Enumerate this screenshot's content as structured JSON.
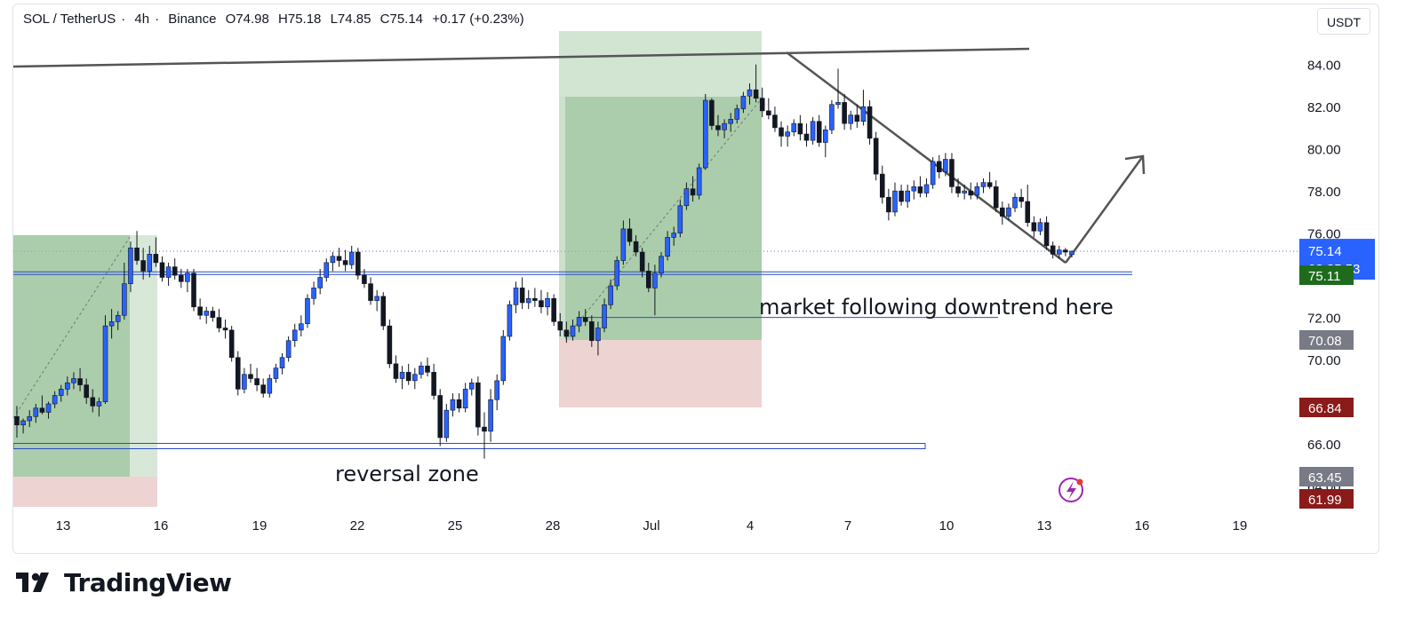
{
  "header": {
    "symbol": "SOL / TetherUS",
    "timeframe": "4h",
    "exchange": "Binance",
    "separator": "·",
    "open": "O74.98",
    "high": "H75.18",
    "low": "L74.85",
    "close": "C75.14",
    "change": "+0.17 (+0.23%)"
  },
  "currency_button": "USDT",
  "brand": {
    "name": "TradingView"
  },
  "colors": {
    "up": "#2962ff",
    "down": "#131722",
    "zone_green": "#8fbc8f",
    "zone_red": "#e8c4c4",
    "line": "#555555",
    "level_blue": "#2a4cc7"
  },
  "chart_data": {
    "type": "candlestick",
    "ylim": [
      63.1,
      85.5
    ],
    "yticks": [
      "84.00",
      "82.00",
      "80.00",
      "78.00",
      "76.00",
      "74.00",
      "72.00",
      "70.00",
      "68.00",
      "66.00",
      "64.00"
    ],
    "x_axis_ticks": [
      "13",
      "16",
      "19",
      "22",
      "25",
      "28",
      "Jul",
      "4",
      "7",
      "10",
      "13",
      "16",
      "19"
    ],
    "last_price": {
      "value": "75.14",
      "countdown": "03:35:53",
      "color": "#2962ff"
    },
    "price_labels": [
      {
        "value": "75.11",
        "color": "#1e6b1e"
      },
      {
        "value": "70.08",
        "color": "#787b86"
      },
      {
        "value": "66.84",
        "color": "#8b1a1a"
      },
      {
        "value": "63.45",
        "color": "#787b86"
      },
      {
        "value": "61.99",
        "color": "#8b1a1a"
      }
    ],
    "annotations": [
      {
        "text": "market following downtrend here"
      },
      {
        "text": "reversal zone"
      }
    ],
    "support_level": 74.1,
    "lower_level": 72.0,
    "reversal_level": 65.9,
    "candles": [
      [
        67.3,
        67.8,
        66.3,
        66.9
      ],
      [
        66.9,
        67.2,
        66.5,
        67.1
      ],
      [
        67.1,
        67.6,
        66.8,
        67.3
      ],
      [
        67.3,
        67.9,
        67.0,
        67.7
      ],
      [
        67.7,
        68.3,
        67.4,
        67.5
      ],
      [
        67.5,
        68.0,
        67.2,
        67.9
      ],
      [
        67.9,
        68.5,
        67.7,
        68.3
      ],
      [
        68.3,
        68.8,
        68.0,
        68.6
      ],
      [
        68.6,
        69.2,
        68.3,
        68.9
      ],
      [
        68.9,
        69.4,
        68.6,
        69.1
      ],
      [
        69.1,
        69.6,
        68.5,
        68.8
      ],
      [
        68.8,
        69.1,
        67.9,
        68.2
      ],
      [
        68.2,
        68.6,
        67.5,
        67.8
      ],
      [
        67.8,
        68.2,
        67.3,
        68.0
      ],
      [
        68.0,
        72.1,
        67.9,
        71.6
      ],
      [
        71.6,
        72.4,
        71.0,
        71.8
      ],
      [
        71.8,
        72.3,
        71.4,
        72.1
      ],
      [
        72.1,
        74.6,
        71.9,
        73.6
      ],
      [
        73.6,
        75.6,
        73.2,
        75.3
      ],
      [
        75.3,
        76.1,
        74.5,
        74.7
      ],
      [
        74.7,
        75.3,
        73.8,
        74.2
      ],
      [
        74.2,
        75.4,
        73.9,
        75.0
      ],
      [
        75.0,
        75.8,
        74.4,
        74.6
      ],
      [
        74.6,
        74.9,
        73.7,
        73.9
      ],
      [
        73.9,
        74.6,
        73.5,
        74.4
      ],
      [
        74.4,
        74.8,
        73.8,
        74.0
      ],
      [
        74.0,
        74.3,
        73.4,
        73.7
      ],
      [
        73.7,
        74.3,
        73.2,
        74.1
      ],
      [
        74.1,
        74.3,
        72.3,
        72.5
      ],
      [
        72.5,
        72.9,
        71.9,
        72.1
      ],
      [
        72.1,
        72.5,
        71.7,
        72.3
      ],
      [
        72.3,
        72.5,
        71.8,
        72.0
      ],
      [
        72.0,
        72.4,
        71.3,
        71.5
      ],
      [
        71.5,
        71.9,
        71.0,
        71.4
      ],
      [
        71.4,
        71.6,
        69.9,
        70.1
      ],
      [
        70.1,
        70.4,
        68.3,
        68.6
      ],
      [
        68.6,
        69.6,
        68.4,
        69.3
      ],
      [
        69.3,
        69.8,
        68.9,
        69.1
      ],
      [
        69.1,
        69.6,
        68.5,
        68.8
      ],
      [
        68.8,
        69.1,
        68.2,
        68.4
      ],
      [
        68.4,
        69.3,
        68.2,
        69.1
      ],
      [
        69.1,
        69.8,
        68.9,
        69.6
      ],
      [
        69.6,
        70.3,
        69.3,
        70.1
      ],
      [
        70.1,
        71.1,
        69.9,
        70.9
      ],
      [
        70.9,
        71.7,
        70.6,
        71.4
      ],
      [
        71.4,
        72.1,
        71.1,
        71.7
      ],
      [
        71.7,
        73.1,
        71.5,
        72.9
      ],
      [
        72.9,
        73.7,
        72.6,
        73.4
      ],
      [
        73.4,
        74.3,
        73.1,
        73.9
      ],
      [
        73.9,
        74.8,
        73.7,
        74.6
      ],
      [
        74.6,
        75.1,
        74.2,
        74.9
      ],
      [
        74.9,
        75.3,
        74.4,
        74.7
      ],
      [
        74.7,
        75.2,
        74.2,
        74.5
      ],
      [
        74.5,
        75.4,
        74.3,
        75.1
      ],
      [
        75.1,
        75.3,
        73.8,
        74.0
      ],
      [
        74.0,
        74.3,
        73.4,
        73.6
      ],
      [
        73.6,
        73.9,
        72.6,
        72.8
      ],
      [
        72.8,
        73.3,
        72.3,
        73.0
      ],
      [
        73.0,
        73.2,
        71.4,
        71.6
      ],
      [
        71.6,
        71.9,
        69.6,
        69.8
      ],
      [
        69.8,
        70.2,
        68.9,
        69.1
      ],
      [
        69.1,
        69.7,
        68.6,
        69.4
      ],
      [
        69.4,
        69.8,
        68.8,
        69.0
      ],
      [
        69.0,
        69.6,
        68.6,
        69.3
      ],
      [
        69.3,
        69.9,
        69.1,
        69.7
      ],
      [
        69.7,
        70.1,
        69.2,
        69.4
      ],
      [
        69.4,
        69.8,
        68.1,
        68.3
      ],
      [
        68.3,
        68.6,
        65.9,
        66.3
      ],
      [
        66.3,
        67.9,
        66.1,
        67.6
      ],
      [
        67.6,
        68.4,
        67.3,
        68.1
      ],
      [
        68.1,
        68.4,
        67.5,
        67.7
      ],
      [
        67.7,
        68.9,
        67.5,
        68.6
      ],
      [
        68.6,
        69.1,
        68.3,
        68.9
      ],
      [
        68.9,
        69.2,
        66.4,
        66.8
      ],
      [
        66.8,
        67.5,
        65.3,
        66.6
      ],
      [
        66.6,
        68.6,
        66.1,
        68.1
      ],
      [
        68.1,
        69.3,
        67.6,
        69.0
      ],
      [
        69.0,
        71.4,
        68.8,
        71.1
      ],
      [
        71.1,
        72.8,
        70.9,
        72.6
      ],
      [
        72.6,
        73.7,
        72.2,
        73.4
      ],
      [
        73.4,
        73.9,
        72.4,
        72.7
      ],
      [
        72.7,
        73.3,
        72.4,
        72.9
      ],
      [
        72.9,
        73.4,
        72.5,
        72.8
      ],
      [
        72.8,
        73.3,
        72.2,
        72.5
      ],
      [
        72.5,
        73.2,
        72.1,
        72.9
      ],
      [
        72.9,
        73.1,
        71.6,
        71.8
      ],
      [
        71.8,
        72.2,
        71.1,
        71.4
      ],
      [
        71.4,
        71.8,
        70.8,
        71.1
      ],
      [
        71.1,
        71.9,
        70.9,
        71.6
      ],
      [
        71.6,
        72.3,
        71.3,
        72.0
      ],
      [
        72.0,
        72.4,
        71.6,
        71.8
      ],
      [
        71.8,
        72.1,
        70.6,
        70.9
      ],
      [
        70.9,
        71.8,
        70.2,
        71.5
      ],
      [
        71.5,
        72.9,
        71.3,
        72.6
      ],
      [
        72.6,
        73.8,
        72.4,
        73.5
      ],
      [
        73.5,
        74.9,
        73.3,
        74.7
      ],
      [
        74.7,
        76.6,
        74.5,
        76.2
      ],
      [
        76.2,
        76.7,
        75.4,
        75.6
      ],
      [
        75.6,
        75.9,
        74.9,
        75.1
      ],
      [
        75.1,
        75.3,
        73.9,
        74.2
      ],
      [
        74.2,
        74.6,
        73.2,
        73.4
      ],
      [
        73.4,
        74.5,
        72.1,
        74.1
      ],
      [
        74.1,
        75.1,
        73.9,
        74.9
      ],
      [
        74.9,
        76.1,
        74.7,
        75.8
      ],
      [
        75.8,
        76.3,
        75.4,
        76.0
      ],
      [
        76.0,
        77.6,
        75.8,
        77.3
      ],
      [
        77.3,
        78.4,
        77.1,
        78.1
      ],
      [
        78.1,
        78.7,
        77.5,
        77.8
      ],
      [
        77.8,
        79.3,
        77.6,
        79.1
      ],
      [
        79.1,
        82.6,
        79.0,
        82.3
      ],
      [
        82.3,
        82.4,
        80.9,
        81.1
      ],
      [
        81.1,
        81.6,
        80.6,
        80.9
      ],
      [
        80.9,
        81.4,
        80.5,
        81.2
      ],
      [
        81.2,
        81.7,
        80.8,
        81.4
      ],
      [
        81.4,
        82.1,
        81.2,
        81.9
      ],
      [
        81.9,
        82.7,
        81.7,
        82.5
      ],
      [
        82.5,
        83.1,
        82.1,
        82.8
      ],
      [
        82.8,
        84.0,
        82.2,
        82.4
      ],
      [
        82.4,
        82.9,
        81.5,
        81.8
      ],
      [
        81.8,
        82.4,
        81.4,
        81.6
      ],
      [
        81.6,
        82.0,
        80.8,
        81.0
      ],
      [
        81.0,
        81.3,
        80.1,
        80.6
      ],
      [
        80.6,
        81.1,
        80.1,
        80.8
      ],
      [
        80.8,
        81.4,
        80.6,
        81.2
      ],
      [
        81.2,
        81.6,
        80.4,
        80.7
      ],
      [
        80.7,
        81.2,
        80.1,
        80.4
      ],
      [
        80.4,
        81.5,
        80.2,
        81.3
      ],
      [
        81.3,
        81.6,
        80.1,
        80.3
      ],
      [
        80.3,
        81.1,
        79.6,
        80.9
      ],
      [
        80.9,
        82.3,
        80.7,
        82.1
      ],
      [
        82.1,
        83.8,
        81.9,
        82.2
      ],
      [
        82.2,
        82.6,
        80.9,
        81.2
      ],
      [
        81.2,
        81.8,
        80.9,
        81.6
      ],
      [
        81.6,
        82.1,
        81.0,
        81.3
      ],
      [
        81.3,
        82.8,
        81.1,
        82.0
      ],
      [
        82.0,
        82.3,
        80.2,
        80.5
      ],
      [
        80.5,
        80.8,
        78.5,
        78.8
      ],
      [
        78.8,
        79.2,
        77.4,
        77.7
      ],
      [
        77.7,
        78.1,
        76.6,
        77.0
      ],
      [
        77.0,
        78.4,
        76.8,
        78.0
      ],
      [
        78.0,
        78.3,
        77.3,
        77.5
      ],
      [
        77.5,
        78.3,
        77.2,
        78.0
      ],
      [
        78.0,
        78.5,
        77.6,
        78.2
      ],
      [
        78.2,
        78.7,
        77.7,
        77.9
      ],
      [
        77.9,
        78.6,
        77.7,
        78.3
      ],
      [
        78.3,
        79.6,
        78.1,
        79.4
      ],
      [
        79.4,
        79.7,
        78.6,
        78.9
      ],
      [
        78.9,
        79.8,
        78.7,
        79.5
      ],
      [
        79.5,
        79.8,
        77.9,
        78.2
      ],
      [
        78.2,
        78.6,
        77.7,
        77.9
      ],
      [
        77.9,
        78.3,
        77.6,
        78.0
      ],
      [
        78.0,
        78.4,
        77.6,
        77.8
      ],
      [
        77.8,
        78.4,
        77.6,
        78.2
      ],
      [
        78.2,
        78.6,
        77.9,
        78.4
      ],
      [
        78.4,
        78.9,
        78.1,
        78.2
      ],
      [
        78.2,
        78.5,
        77.0,
        77.2
      ],
      [
        77.2,
        77.5,
        76.4,
        76.8
      ],
      [
        76.8,
        77.4,
        76.6,
        77.2
      ],
      [
        77.2,
        77.9,
        77.0,
        77.7
      ],
      [
        77.7,
        78.1,
        77.2,
        77.5
      ],
      [
        77.5,
        78.3,
        76.3,
        76.5
      ],
      [
        76.5,
        76.8,
        75.8,
        76.1
      ],
      [
        76.1,
        76.7,
        75.9,
        76.5
      ],
      [
        76.5,
        76.8,
        75.2,
        75.4
      ],
      [
        75.4,
        75.6,
        74.8,
        75.0
      ],
      [
        75.0,
        75.4,
        74.8,
        75.2
      ],
      [
        75.2,
        75.3,
        74.9,
        75.1
      ],
      [
        74.98,
        75.18,
        74.85,
        75.14
      ]
    ]
  }
}
